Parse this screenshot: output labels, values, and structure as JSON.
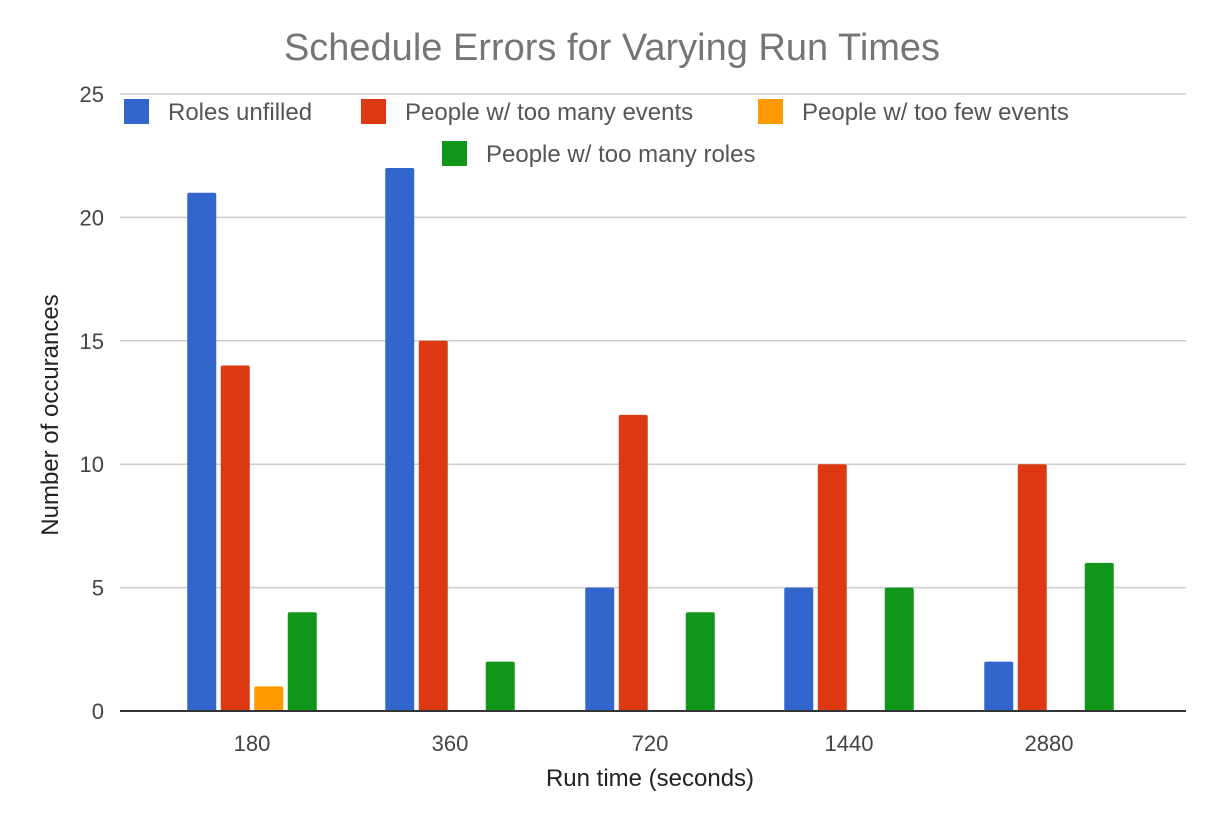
{
  "chart_data": {
    "type": "bar",
    "title": "Schedule Errors for Varying Run Times",
    "xlabel": "Run time (seconds)",
    "ylabel": "Number of occurances",
    "categories": [
      "180",
      "360",
      "720",
      "1440",
      "2880"
    ],
    "ylim": [
      0,
      25
    ],
    "yticks": [
      "0",
      "5",
      "10",
      "15",
      "20",
      "25"
    ],
    "grid": true,
    "legend_position": "top",
    "series": [
      {
        "name": "Roles unfilled",
        "color": "#3366cc",
        "values": [
          21,
          22,
          5,
          5,
          2
        ]
      },
      {
        "name": "People w/ too many events",
        "color": "#dc3912",
        "values": [
          14,
          15,
          12,
          10,
          10
        ]
      },
      {
        "name": "People w/ too few events",
        "color": "#ff9900",
        "values": [
          1,
          0,
          0,
          0,
          0
        ]
      },
      {
        "name": "People w/ too many roles",
        "color": "#109618",
        "values": [
          4,
          2,
          4,
          5,
          6
        ]
      }
    ]
  }
}
